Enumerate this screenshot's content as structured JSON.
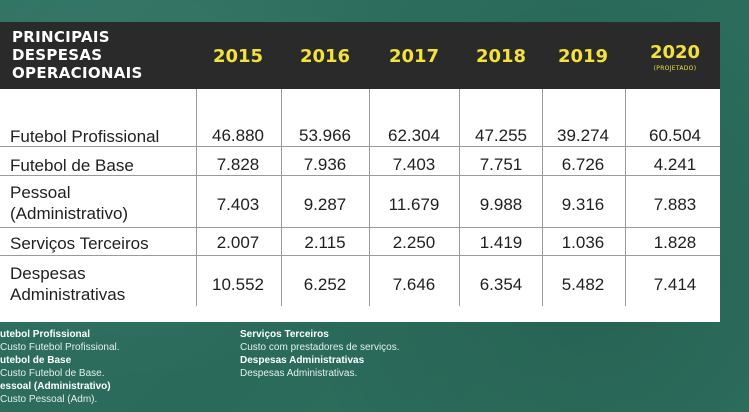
{
  "chart_data": {
    "type": "table",
    "title": "PRINCIPAIS\nDESPESAS\nOPERACIONAIS",
    "columns": [
      {
        "label": "2015",
        "sub": ""
      },
      {
        "label": "2016",
        "sub": ""
      },
      {
        "label": "2017",
        "sub": ""
      },
      {
        "label": "2018",
        "sub": ""
      },
      {
        "label": "2019",
        "sub": ""
      },
      {
        "label": "2020",
        "sub": "(PROJETADO)"
      }
    ],
    "rows": [
      {
        "label": "Futebol Profissional",
        "values": [
          "46.880",
          "53.966",
          "62.304",
          "47.255",
          "39.274",
          "60.504"
        ]
      },
      {
        "label": "Futebol de Base",
        "values": [
          "7.828",
          "7.936",
          "7.403",
          "7.751",
          "6.726",
          "4.241"
        ]
      },
      {
        "label": "Pessoal\n(Administrativo)",
        "values": [
          "7.403",
          "9.287",
          "11.679",
          "9.988",
          "9.316",
          "7.883"
        ]
      },
      {
        "label": "Serviços Terceiros",
        "values": [
          "2.007",
          "2.115",
          "2.250",
          "1.419",
          "1.036",
          "1.828"
        ]
      },
      {
        "label": "Despesas\nAdministrativas",
        "values": [
          "10.552",
          "6.252",
          "7.646",
          "6.354",
          "5.482",
          "7.414"
        ]
      }
    ]
  },
  "legend": {
    "left": [
      {
        "term": "utebol Profissional",
        "desc": "Custo Futebol Profissional."
      },
      {
        "term": "utebol de Base",
        "desc": "Custo Futebol de Base."
      },
      {
        "term": "essoal (Administrativo)",
        "desc": "Custo Pessoal (Adm)."
      }
    ],
    "right": [
      {
        "term": "Serviços Terceiros",
        "desc": "Custo com prestadores de serviços."
      },
      {
        "term": "Despesas Administrativas",
        "desc": "Despesas Administrativas."
      }
    ]
  },
  "colors": {
    "header_bg": "#2a2a2a",
    "year_text": "#f3e23c",
    "page_bg": "#2c6e5e"
  }
}
